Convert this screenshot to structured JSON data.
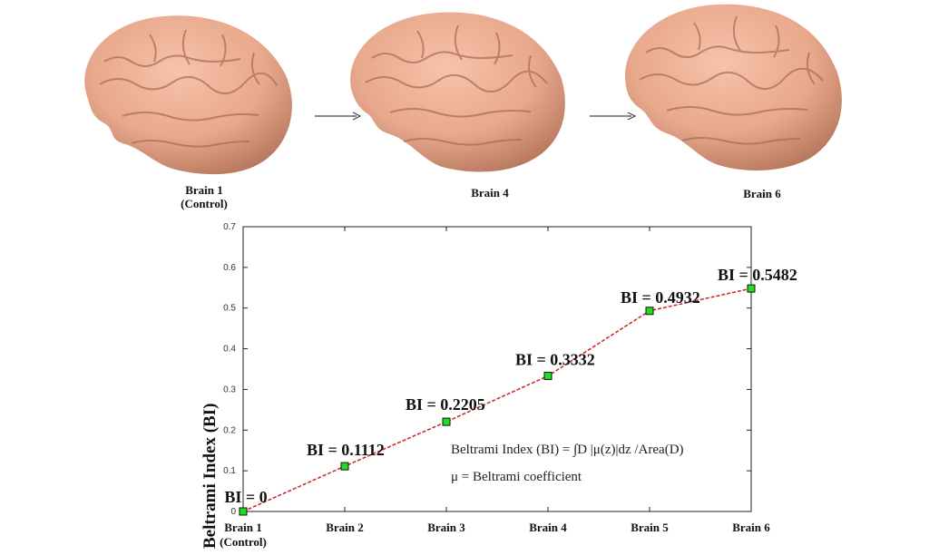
{
  "brains": [
    {
      "label": "Brain 1",
      "sublabel": "(Control)",
      "icon": "brain-3d-render"
    },
    {
      "label": "Brain 4",
      "icon": "brain-3d-render"
    },
    {
      "label": "Brain 6",
      "icon": "brain-3d-render"
    }
  ],
  "colors": {
    "brain_fill": "#e8a88c",
    "brain_shadow": "#b8785f",
    "line": "#cc2222",
    "marker": "#22dd22",
    "marker_edge": "#111111"
  },
  "formula": {
    "line1": "Beltrami Index (BI) = ∫D |μ(z)|dz /Area(D)",
    "line2": "μ  = Beltrami coefficient"
  },
  "chart_data": {
    "type": "line",
    "categories": [
      "Brain 1",
      "Brain 2",
      "Brain 3",
      "Brain 4",
      "Brain 5",
      "Brain 6"
    ],
    "category_sublabels": [
      "(Control)",
      "",
      "",
      "",
      "",
      ""
    ],
    "values": [
      0,
      0.1112,
      0.2205,
      0.3332,
      0.4932,
      0.5482
    ],
    "point_labels": [
      "BI = 0",
      "BI = 0.1112",
      "BI = 0.2205",
      "BI = 0.3332",
      "BI = 0.4932",
      "BI = 0.5482"
    ],
    "ylabel": "Beltrami Index (BI)",
    "xlabel": "",
    "title": "",
    "ylim": [
      0,
      0.7
    ],
    "yticks": [
      "0",
      "0.1",
      "0.2",
      "0.3",
      "0.4",
      "0.5",
      "0.6",
      "0.7"
    ],
    "line_style": "dashed",
    "marker": "square",
    "grid": false
  }
}
